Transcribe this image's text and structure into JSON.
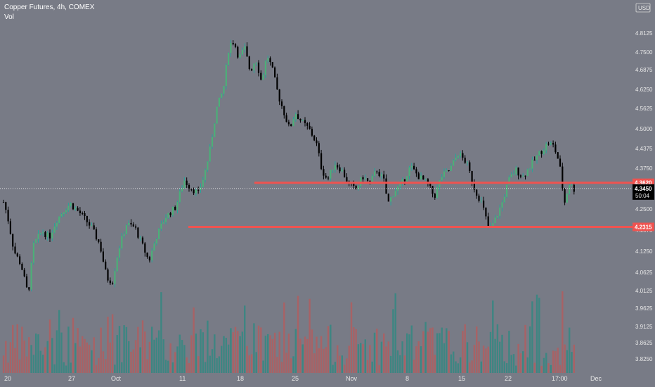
{
  "legend": {
    "symbol": "Copper Futures, 4h, COMEX",
    "volume_label": "Vol"
  },
  "currency": "USD",
  "colors": {
    "background": "#787b86",
    "up": "#26a69a",
    "down": "#000000",
    "hline": "#ef5350",
    "up_vol": "#2a8a80",
    "down_vol": "#b85a5a"
  },
  "chart_data": {
    "type": "candlestick",
    "y_ticks": [
      "4.8125",
      "4.7500",
      "4.6875",
      "4.6250",
      "4.5625",
      "4.5000",
      "4.4375",
      "4.3750",
      "4.3125",
      "4.2500",
      "4.1875",
      "4.1250",
      "4.0625",
      "4.0125",
      "3.9625",
      "3.9125",
      "3.8625",
      "3.8250"
    ],
    "x_ticks": [
      "20",
      "27",
      "Oct",
      "11",
      "18",
      "25",
      "Nov",
      "8",
      "15",
      "22",
      "17:00",
      "Dec"
    ],
    "ylim": [
      3.8,
      4.85
    ],
    "horizontal_lines": [
      {
        "value": 4.362,
        "label": "4.3620"
      },
      {
        "value": 4.2315,
        "label": "4.2315"
      }
    ],
    "last_price": {
      "value": 4.345,
      "label": "4.3450",
      "countdown": "50:04"
    },
    "price_path": [
      [
        0,
        4.34
      ],
      [
        10,
        4.27
      ],
      [
        20,
        4.16
      ],
      [
        30,
        4.12
      ],
      [
        40,
        4.03
      ],
      [
        48,
        4.18
      ],
      [
        60,
        4.22
      ],
      [
        70,
        4.2
      ],
      [
        80,
        4.25
      ],
      [
        90,
        4.28
      ],
      [
        100,
        4.3
      ],
      [
        115,
        4.27
      ],
      [
        130,
        4.23
      ],
      [
        142,
        4.18
      ],
      [
        152,
        4.08
      ],
      [
        160,
        4.07
      ],
      [
        168,
        4.16
      ],
      [
        180,
        4.24
      ],
      [
        192,
        4.23
      ],
      [
        202,
        4.18
      ],
      [
        212,
        4.13
      ],
      [
        222,
        4.2
      ],
      [
        235,
        4.26
      ],
      [
        250,
        4.29
      ],
      [
        262,
        4.37
      ],
      [
        270,
        4.35
      ],
      [
        282,
        4.33
      ],
      [
        290,
        4.38
      ],
      [
        298,
        4.45
      ],
      [
        308,
        4.58
      ],
      [
        318,
        4.64
      ],
      [
        326,
        4.77
      ],
      [
        333,
        4.78
      ],
      [
        340,
        4.73
      ],
      [
        348,
        4.76
      ],
      [
        356,
        4.69
      ],
      [
        364,
        4.73
      ],
      [
        372,
        4.66
      ],
      [
        380,
        4.74
      ],
      [
        387,
        4.7
      ],
      [
        396,
        4.62
      ],
      [
        404,
        4.57
      ],
      [
        412,
        4.52
      ],
      [
        420,
        4.57
      ],
      [
        430,
        4.54
      ],
      [
        440,
        4.52
      ],
      [
        450,
        4.48
      ],
      [
        458,
        4.4
      ],
      [
        466,
        4.37
      ],
      [
        476,
        4.42
      ],
      [
        486,
        4.4
      ],
      [
        496,
        4.36
      ],
      [
        506,
        4.34
      ],
      [
        516,
        4.38
      ],
      [
        526,
        4.36
      ],
      [
        536,
        4.4
      ],
      [
        546,
        4.37
      ],
      [
        552,
        4.3
      ],
      [
        562,
        4.34
      ],
      [
        572,
        4.36
      ],
      [
        584,
        4.41
      ],
      [
        596,
        4.38
      ],
      [
        608,
        4.36
      ],
      [
        618,
        4.32
      ],
      [
        628,
        4.38
      ],
      [
        640,
        4.4
      ],
      [
        652,
        4.45
      ],
      [
        664,
        4.42
      ],
      [
        676,
        4.34
      ],
      [
        686,
        4.3
      ],
      [
        696,
        4.22
      ],
      [
        704,
        4.25
      ],
      [
        714,
        4.3
      ],
      [
        724,
        4.37
      ],
      [
        734,
        4.4
      ],
      [
        744,
        4.38
      ],
      [
        754,
        4.41
      ],
      [
        764,
        4.44
      ],
      [
        772,
        4.46
      ],
      [
        780,
        4.48
      ],
      [
        788,
        4.47
      ],
      [
        796,
        4.42
      ],
      [
        803,
        4.3
      ],
      [
        810,
        4.36
      ],
      [
        818,
        4.34
      ]
    ],
    "volume_ylim": [
      0,
      1
    ]
  }
}
